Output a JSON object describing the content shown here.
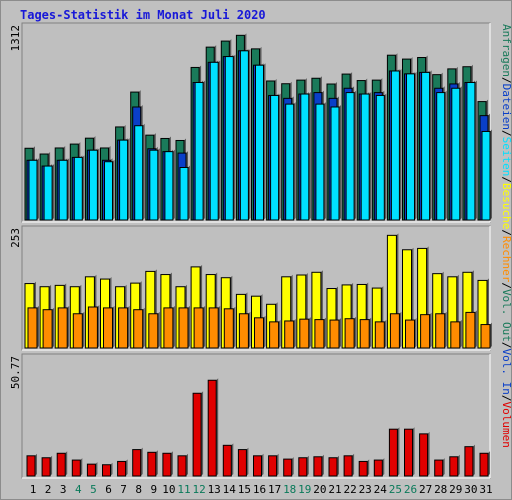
{
  "title": "Tages-Statistik im Monat Juli 2020",
  "colors": {
    "background": "#c0c0c0",
    "panel": "#bfbfbf",
    "title": "#1818d8",
    "anfragen": "#1a7a5a",
    "dateien": "#0a3fc8",
    "seiten": "#00e0ff",
    "besuche": "#ffff00",
    "rechner": "#ff8c00",
    "volumen": "#e00000",
    "vol_in": "#0a3fc8",
    "vol_out": "#1a7a5a",
    "weekend_label": "#0a7a5a",
    "weekday_label": "#000000"
  },
  "legends": {
    "right_panel1": [
      "Anfragen",
      "/",
      "Dateien",
      "/",
      "Seiten",
      "/",
      "Besuche",
      "/",
      "Rechner",
      "/",
      "Vol. Out",
      "/",
      "Vol. In",
      "/",
      "Volumen"
    ]
  },
  "chart_data": [
    {
      "type": "bar",
      "name_panel": "Anfragen / Dateien / Seiten",
      "ymax_label": "1312",
      "ylim": [
        0,
        1312
      ],
      "categories": [
        "1",
        "2",
        "3",
        "4",
        "5",
        "6",
        "7",
        "8",
        "9",
        "10",
        "11",
        "12",
        "13",
        "14",
        "15",
        "16",
        "17",
        "18",
        "19",
        "20",
        "21",
        "22",
        "23",
        "24",
        "25",
        "26",
        "27",
        "28",
        "29",
        "30",
        "31"
      ],
      "weekend": [
        4,
        5,
        11,
        12,
        18,
        19,
        25,
        26
      ],
      "series": [
        {
          "name": "Anfragen",
          "values": [
            498,
            458,
            500,
            527,
            568,
            500,
            646,
            888,
            589,
            566,
            552,
            1059,
            1200,
            1242,
            1282,
            1188,
            965,
            946,
            971,
            984,
            944,
            1013,
            968,
            971,
            1144,
            1117,
            1128,
            1009,
            1049,
            1064,
            822
          ]
        },
        {
          "name": "Dateien",
          "values": [
            470,
            430,
            470,
            490,
            540,
            470,
            610,
            840,
            550,
            530,
            520,
            1010,
            1150,
            1190,
            1230,
            1130,
            920,
            900,
            930,
            940,
            900,
            970,
            930,
            940,
            1090,
            1070,
            1080,
            970,
            1000,
            1010,
            780
          ]
        },
        {
          "name": "Seiten",
          "values": [
            470,
            430,
            470,
            490,
            540,
            460,
            610,
            710,
            540,
            530,
            420,
            1010,
            1150,
            1190,
            1230,
            1130,
            920,
            860,
            930,
            860,
            840,
            940,
            930,
            920,
            1090,
            1070,
            1080,
            940,
            970,
            1010,
            670
          ]
        }
      ]
    },
    {
      "type": "bar",
      "name_panel": "Besuche / Rechner",
      "ymax_label": "253",
      "ylim": [
        0,
        253
      ],
      "categories": [
        "1",
        "2",
        "3",
        "4",
        "5",
        "6",
        "7",
        "8",
        "9",
        "10",
        "11",
        "12",
        "13",
        "14",
        "15",
        "16",
        "17",
        "18",
        "19",
        "20",
        "21",
        "22",
        "23",
        "24",
        "25",
        "26",
        "27",
        "28",
        "29",
        "30",
        "31"
      ],
      "series": [
        {
          "name": "Besuche",
          "values": [
            143,
            136,
            139,
            136,
            158,
            153,
            136,
            144,
            170,
            163,
            136,
            180,
            163,
            156,
            119,
            115,
            97,
            158,
            162,
            168,
            132,
            140,
            141,
            133,
            250,
            218,
            221,
            165,
            158,
            168,
            150
          ]
        },
        {
          "name": "Rechner",
          "values": [
            89,
            85,
            89,
            76,
            91,
            89,
            89,
            85,
            76,
            89,
            89,
            89,
            89,
            87,
            76,
            67,
            58,
            60,
            64,
            63,
            62,
            65,
            63,
            58,
            76,
            62,
            74,
            76,
            58,
            79,
            52
          ]
        }
      ]
    },
    {
      "type": "bar",
      "name_panel": "Volumen / Vol. In / Vol. Out",
      "ymax_label": "50.77",
      "ylim": [
        0,
        58.7
      ],
      "categories": [
        "1",
        "2",
        "3",
        "4",
        "5",
        "6",
        "7",
        "8",
        "9",
        "10",
        "11",
        "12",
        "13",
        "14",
        "15",
        "16",
        "17",
        "18",
        "19",
        "20",
        "21",
        "22",
        "23",
        "24",
        "25",
        "26",
        "27",
        "28",
        "29",
        "30",
        "31"
      ],
      "series": [
        {
          "name": "Volumen",
          "values": [
            10.4,
            9.4,
            11.7,
            8.2,
            6.1,
            5.8,
            7.5,
            13.6,
            12.2,
            11.7,
            10.4,
            42.6,
            49.3,
            15.8,
            13.6,
            10.4,
            10.4,
            8.7,
            9.4,
            9.9,
            9.4,
            10.4,
            7.5,
            8.2,
            24.1,
            24.1,
            21.7,
            8.2,
            9.9,
            15.1,
            11.7
          ]
        }
      ]
    }
  ]
}
